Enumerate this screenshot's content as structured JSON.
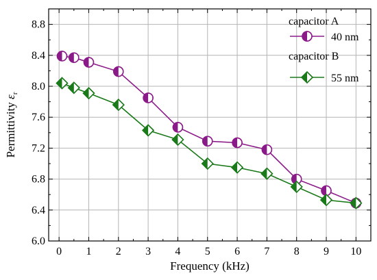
{
  "chart_data": {
    "type": "line",
    "title": "",
    "xlabel": "Frequency (kHz)",
    "ylabel": "Permittivity ",
    "ylabel_symbol": "ε",
    "ylabel_subscript": "r",
    "xlim": [
      -0.35,
      10.5
    ],
    "ylim": [
      6.0,
      9.0
    ],
    "x_ticks": [
      0,
      1,
      2,
      3,
      4,
      5,
      6,
      7,
      8,
      9,
      10
    ],
    "y_ticks": [
      6.0,
      6.4,
      6.8,
      7.2,
      7.6,
      8.0,
      8.4,
      8.8
    ],
    "y_tick_labels": [
      "6.0",
      "6.4",
      "6.8",
      "7.2",
      "7.6",
      "8.0",
      "8.4",
      "8.8"
    ],
    "grid": true,
    "legend": [
      {
        "group": "capacitor A",
        "label": "40 nm"
      },
      {
        "group": "capacitor B",
        "label": "55 nm"
      }
    ],
    "legend_position": "top-right",
    "series": [
      {
        "name": "40 nm",
        "color": "#8B1A89",
        "marker": "circle-half-left",
        "x": [
          0.1,
          0.5,
          1,
          2,
          3,
          4,
          5,
          6,
          7,
          8,
          9,
          10
        ],
        "y": [
          8.39,
          8.37,
          8.31,
          8.19,
          7.85,
          7.47,
          7.29,
          7.27,
          7.18,
          6.8,
          6.65,
          6.49
        ]
      },
      {
        "name": "55 nm",
        "color": "#1A7A1A",
        "marker": "diamond-half-left",
        "x": [
          0.1,
          0.5,
          1,
          2,
          3,
          4,
          5,
          6,
          7,
          8,
          9,
          10
        ],
        "y": [
          8.04,
          7.98,
          7.91,
          7.76,
          7.43,
          7.31,
          7.0,
          6.95,
          6.87,
          6.7,
          6.53,
          6.49
        ]
      }
    ]
  }
}
